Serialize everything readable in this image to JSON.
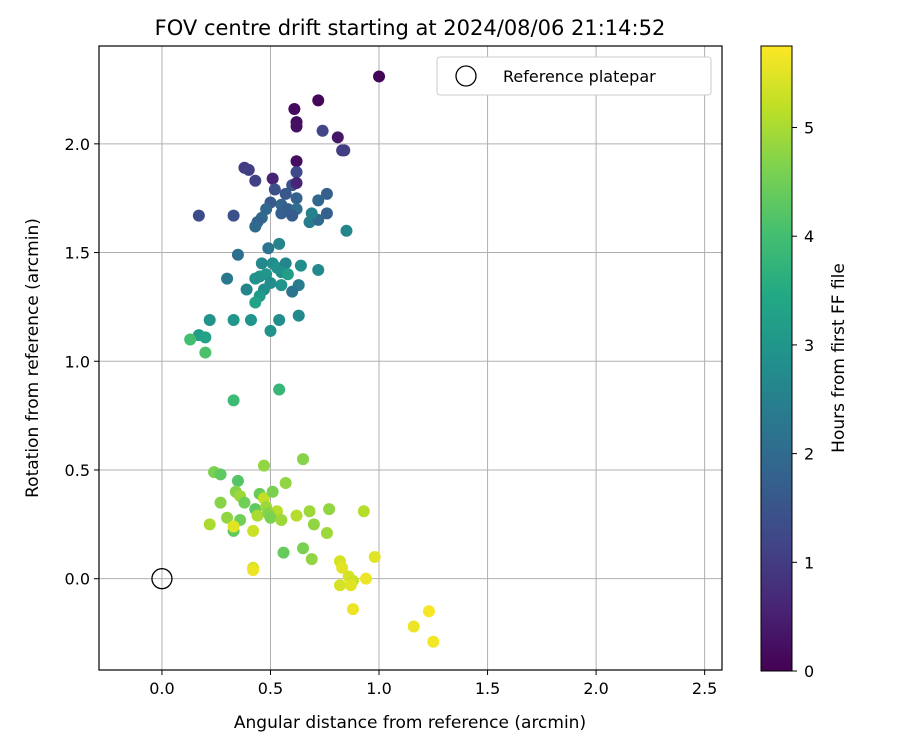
{
  "chart_data": {
    "type": "scatter",
    "title": "FOV centre drift starting at 2024/08/06 21:14:52",
    "xlabel": "Angular distance from reference (arcmin)",
    "ylabel": "Rotation from reference (arcmin)",
    "xlim": [
      -0.29,
      2.58
    ],
    "ylim": [
      -0.42,
      2.45
    ],
    "xticks": [
      0.0,
      0.5,
      1.0,
      1.5,
      2.0,
      2.5
    ],
    "xtick_labels": [
      "0.0",
      "0.5",
      "1.0",
      "1.5",
      "2.0",
      "2.5"
    ],
    "yticks": [
      0.0,
      0.5,
      1.0,
      1.5,
      2.0
    ],
    "ytick_labels": [
      "0.0",
      "0.5",
      "1.0",
      "1.5",
      "2.0"
    ],
    "grid": true,
    "legend": {
      "placement": "top-right",
      "entries": [
        "Reference platepar"
      ]
    },
    "reference_point": {
      "x": 0.0,
      "y": 0.0
    },
    "colorbar": {
      "label": "Hours from first FF file",
      "min": 0,
      "max": 5.75,
      "colormap": "viridis",
      "ticks": [
        0,
        1,
        2,
        3,
        4,
        5
      ],
      "tick_labels": [
        "0",
        "1",
        "2",
        "3",
        "4",
        "5"
      ]
    },
    "points": [
      {
        "x": 1.0,
        "y": 2.31,
        "h": 0.05
      },
      {
        "x": 0.72,
        "y": 2.2,
        "h": 0.1
      },
      {
        "x": 0.61,
        "y": 2.16,
        "h": 0.15
      },
      {
        "x": 0.62,
        "y": 2.1,
        "h": 0.2
      },
      {
        "x": 0.62,
        "y": 2.08,
        "h": 0.25
      },
      {
        "x": 0.81,
        "y": 2.03,
        "h": 0.35
      },
      {
        "x": 0.74,
        "y": 2.06,
        "h": 1.2
      },
      {
        "x": 0.83,
        "y": 1.97,
        "h": 1.0
      },
      {
        "x": 0.84,
        "y": 1.97,
        "h": 1.05
      },
      {
        "x": 0.62,
        "y": 1.92,
        "h": 0.2
      },
      {
        "x": 0.38,
        "y": 1.89,
        "h": 1.0
      },
      {
        "x": 0.4,
        "y": 1.88,
        "h": 1.05
      },
      {
        "x": 0.62,
        "y": 1.87,
        "h": 1.3
      },
      {
        "x": 0.43,
        "y": 1.83,
        "h": 1.1
      },
      {
        "x": 0.51,
        "y": 1.84,
        "h": 0.55
      },
      {
        "x": 0.6,
        "y": 1.81,
        "h": 1.5
      },
      {
        "x": 0.62,
        "y": 1.82,
        "h": 0.6
      },
      {
        "x": 0.52,
        "y": 1.79,
        "h": 1.4
      },
      {
        "x": 0.57,
        "y": 1.77,
        "h": 1.55
      },
      {
        "x": 0.76,
        "y": 1.77,
        "h": 1.75
      },
      {
        "x": 0.72,
        "y": 1.74,
        "h": 1.9
      },
      {
        "x": 0.62,
        "y": 1.75,
        "h": 1.8
      },
      {
        "x": 0.5,
        "y": 1.73,
        "h": 1.6
      },
      {
        "x": 0.55,
        "y": 1.72,
        "h": 1.85
      },
      {
        "x": 0.48,
        "y": 1.7,
        "h": 1.9
      },
      {
        "x": 0.58,
        "y": 1.7,
        "h": 1.7
      },
      {
        "x": 0.62,
        "y": 1.7,
        "h": 2.05
      },
      {
        "x": 0.55,
        "y": 1.68,
        "h": 1.75
      },
      {
        "x": 0.6,
        "y": 1.67,
        "h": 1.65
      },
      {
        "x": 0.76,
        "y": 1.68,
        "h": 1.8
      },
      {
        "x": 0.17,
        "y": 1.67,
        "h": 1.3
      },
      {
        "x": 0.33,
        "y": 1.67,
        "h": 1.4
      },
      {
        "x": 0.46,
        "y": 1.66,
        "h": 1.95
      },
      {
        "x": 0.44,
        "y": 1.64,
        "h": 1.85
      },
      {
        "x": 0.43,
        "y": 1.62,
        "h": 1.95
      },
      {
        "x": 0.68,
        "y": 1.64,
        "h": 2.4
      },
      {
        "x": 0.72,
        "y": 1.65,
        "h": 2.0
      },
      {
        "x": 0.69,
        "y": 1.68,
        "h": 2.5
      },
      {
        "x": 0.85,
        "y": 1.6,
        "h": 2.6
      },
      {
        "x": 0.35,
        "y": 1.49,
        "h": 2.1
      },
      {
        "x": 0.49,
        "y": 1.52,
        "h": 2.25
      },
      {
        "x": 0.54,
        "y": 1.54,
        "h": 2.6
      },
      {
        "x": 0.46,
        "y": 1.45,
        "h": 2.7
      },
      {
        "x": 0.51,
        "y": 1.45,
        "h": 2.8
      },
      {
        "x": 0.53,
        "y": 1.43,
        "h": 2.9
      },
      {
        "x": 0.57,
        "y": 1.45,
        "h": 2.6
      },
      {
        "x": 0.64,
        "y": 1.44,
        "h": 2.8
      },
      {
        "x": 0.72,
        "y": 1.42,
        "h": 2.7
      },
      {
        "x": 0.45,
        "y": 1.39,
        "h": 2.9
      },
      {
        "x": 0.48,
        "y": 1.4,
        "h": 3.0
      },
      {
        "x": 0.55,
        "y": 1.41,
        "h": 2.85
      },
      {
        "x": 0.58,
        "y": 1.4,
        "h": 3.2
      },
      {
        "x": 0.3,
        "y": 1.38,
        "h": 2.3
      },
      {
        "x": 0.43,
        "y": 1.38,
        "h": 2.9
      },
      {
        "x": 0.5,
        "y": 1.36,
        "h": 2.75
      },
      {
        "x": 0.55,
        "y": 1.35,
        "h": 2.95
      },
      {
        "x": 0.63,
        "y": 1.35,
        "h": 2.4
      },
      {
        "x": 0.39,
        "y": 1.33,
        "h": 2.6
      },
      {
        "x": 0.47,
        "y": 1.33,
        "h": 2.8
      },
      {
        "x": 0.6,
        "y": 1.32,
        "h": 2.2
      },
      {
        "x": 0.45,
        "y": 1.3,
        "h": 3.1
      },
      {
        "x": 0.43,
        "y": 1.27,
        "h": 3.3
      },
      {
        "x": 0.22,
        "y": 1.19,
        "h": 2.9
      },
      {
        "x": 0.33,
        "y": 1.19,
        "h": 3.0
      },
      {
        "x": 0.41,
        "y": 1.19,
        "h": 2.95
      },
      {
        "x": 0.54,
        "y": 1.19,
        "h": 2.8
      },
      {
        "x": 0.63,
        "y": 1.21,
        "h": 2.7
      },
      {
        "x": 0.5,
        "y": 1.14,
        "h": 2.9
      },
      {
        "x": 0.17,
        "y": 1.12,
        "h": 3.2
      },
      {
        "x": 0.2,
        "y": 1.11,
        "h": 3.3
      },
      {
        "x": 0.13,
        "y": 1.1,
        "h": 4.0
      },
      {
        "x": 0.2,
        "y": 1.04,
        "h": 4.1
      },
      {
        "x": 0.33,
        "y": 0.82,
        "h": 3.9
      },
      {
        "x": 0.54,
        "y": 0.87,
        "h": 3.8
      },
      {
        "x": 0.24,
        "y": 0.49,
        "h": 4.6
      },
      {
        "x": 0.27,
        "y": 0.48,
        "h": 4.3
      },
      {
        "x": 0.47,
        "y": 0.52,
        "h": 4.8
      },
      {
        "x": 0.65,
        "y": 0.55,
        "h": 4.7
      },
      {
        "x": 0.57,
        "y": 0.44,
        "h": 4.8
      },
      {
        "x": 0.35,
        "y": 0.45,
        "h": 4.2
      },
      {
        "x": 0.34,
        "y": 0.4,
        "h": 4.7
      },
      {
        "x": 0.36,
        "y": 0.38,
        "h": 4.9
      },
      {
        "x": 0.45,
        "y": 0.39,
        "h": 4.4
      },
      {
        "x": 0.47,
        "y": 0.37,
        "h": 5.2
      },
      {
        "x": 0.51,
        "y": 0.4,
        "h": 4.6
      },
      {
        "x": 0.27,
        "y": 0.35,
        "h": 4.7
      },
      {
        "x": 0.38,
        "y": 0.35,
        "h": 4.5
      },
      {
        "x": 0.43,
        "y": 0.32,
        "h": 4.3
      },
      {
        "x": 0.48,
        "y": 0.33,
        "h": 4.9
      },
      {
        "x": 0.53,
        "y": 0.31,
        "h": 5.1
      },
      {
        "x": 0.68,
        "y": 0.31,
        "h": 4.9
      },
      {
        "x": 0.77,
        "y": 0.32,
        "h": 4.8
      },
      {
        "x": 0.93,
        "y": 0.31,
        "h": 5.1
      },
      {
        "x": 0.3,
        "y": 0.28,
        "h": 4.8
      },
      {
        "x": 0.36,
        "y": 0.27,
        "h": 4.5
      },
      {
        "x": 0.44,
        "y": 0.29,
        "h": 5.0
      },
      {
        "x": 0.49,
        "y": 0.3,
        "h": 4.7
      },
      {
        "x": 0.5,
        "y": 0.28,
        "h": 4.6
      },
      {
        "x": 0.55,
        "y": 0.27,
        "h": 4.9
      },
      {
        "x": 0.62,
        "y": 0.29,
        "h": 5.1
      },
      {
        "x": 0.7,
        "y": 0.25,
        "h": 4.8
      },
      {
        "x": 0.22,
        "y": 0.25,
        "h": 5.0
      },
      {
        "x": 0.33,
        "y": 0.22,
        "h": 4.3
      },
      {
        "x": 0.33,
        "y": 0.24,
        "h": 5.5
      },
      {
        "x": 0.42,
        "y": 0.22,
        "h": 5.3
      },
      {
        "x": 0.76,
        "y": 0.21,
        "h": 4.9
      },
      {
        "x": 0.56,
        "y": 0.12,
        "h": 4.4
      },
      {
        "x": 0.65,
        "y": 0.14,
        "h": 4.6
      },
      {
        "x": 0.69,
        "y": 0.09,
        "h": 4.8
      },
      {
        "x": 0.82,
        "y": 0.08,
        "h": 5.4
      },
      {
        "x": 0.98,
        "y": 0.1,
        "h": 5.5
      },
      {
        "x": 0.42,
        "y": 0.05,
        "h": 5.4
      },
      {
        "x": 0.42,
        "y": 0.04,
        "h": 5.6
      },
      {
        "x": 0.83,
        "y": 0.05,
        "h": 5.5
      },
      {
        "x": 0.86,
        "y": 0.01,
        "h": 5.4
      },
      {
        "x": 0.88,
        "y": -0.01,
        "h": 5.3
      },
      {
        "x": 0.94,
        "y": 0.0,
        "h": 5.6
      },
      {
        "x": 0.82,
        "y": -0.03,
        "h": 5.4
      },
      {
        "x": 0.87,
        "y": -0.03,
        "h": 5.5
      },
      {
        "x": 0.88,
        "y": -0.14,
        "h": 5.6
      },
      {
        "x": 1.16,
        "y": -0.22,
        "h": 5.6
      },
      {
        "x": 1.23,
        "y": -0.15,
        "h": 5.7
      },
      {
        "x": 1.25,
        "y": -0.29,
        "h": 5.65
      }
    ]
  }
}
